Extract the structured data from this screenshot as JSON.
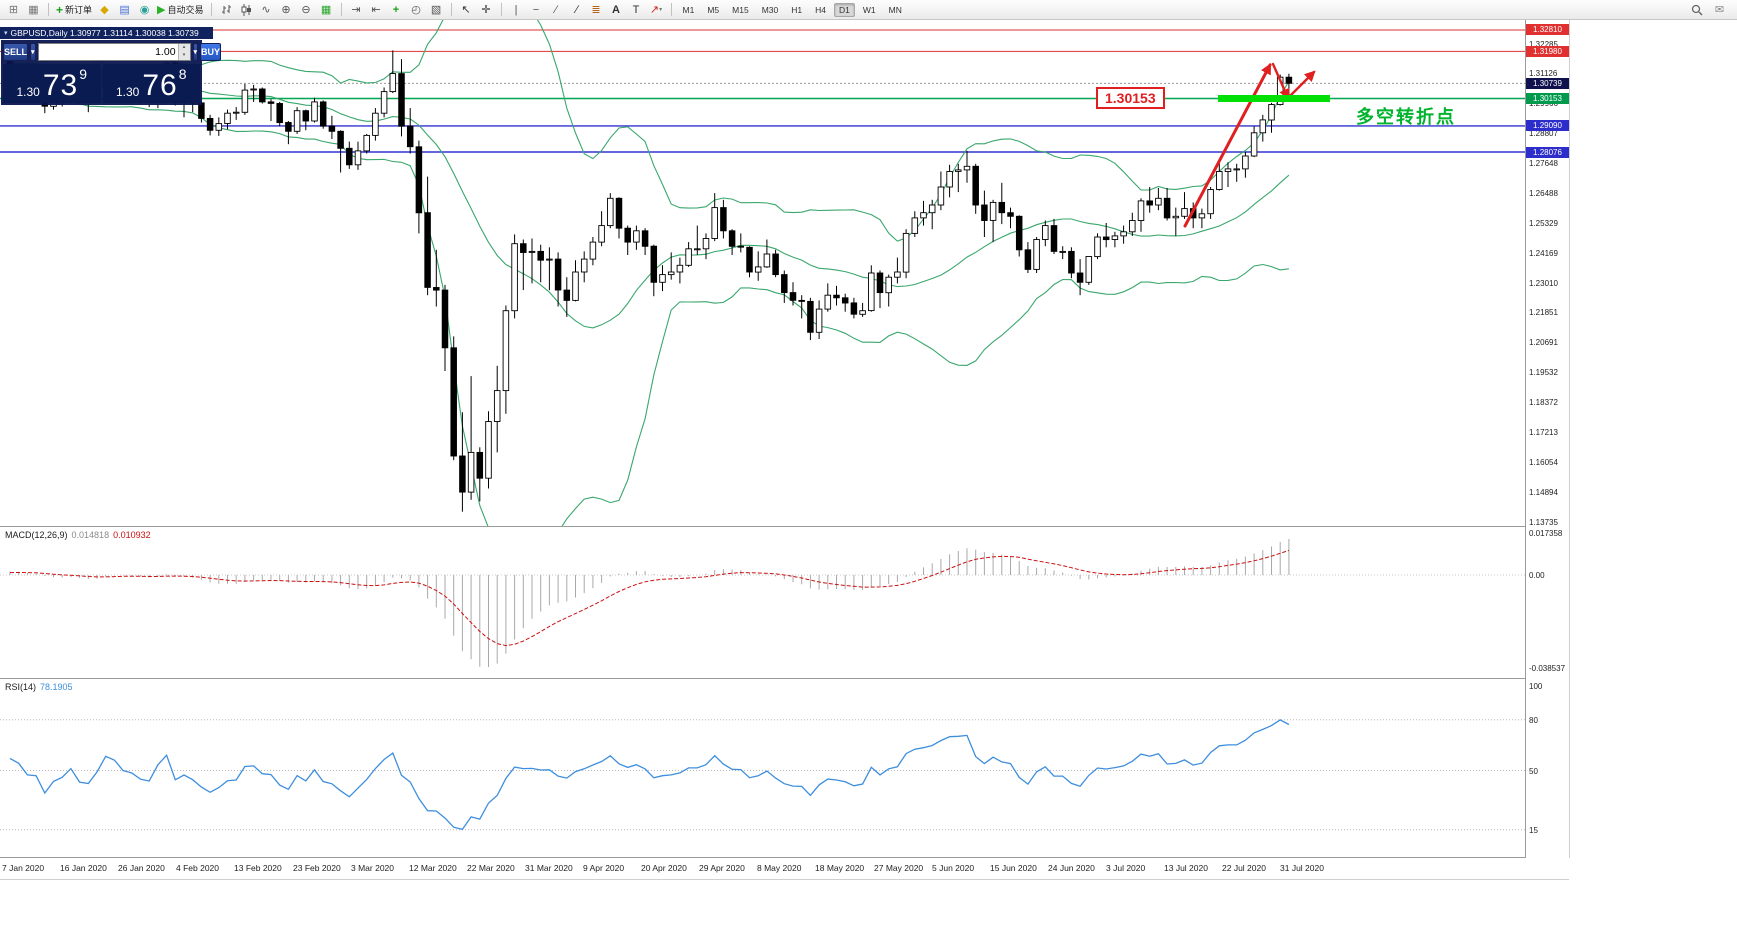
{
  "chart": {
    "title": "GBPUSD,Daily  1.30977 1.31114 1.30038 1.30739",
    "symbol": "GBPUSD",
    "period": "Daily",
    "ohlc": {
      "open": "1.30977",
      "high": "1.31114",
      "low": "1.30038",
      "close": "1.30739"
    }
  },
  "toolbar": {
    "groups": [
      {
        "items": [
          {
            "icon": "new-chart-icon"
          },
          {
            "icon": "profiles-icon"
          }
        ]
      },
      {
        "items": [
          {
            "icon": "new-order-icon",
            "label": "新订单"
          },
          {
            "icon": "metaeditor-icon"
          },
          {
            "icon": "market-watch-icon"
          },
          {
            "icon": "tester-icon"
          },
          {
            "icon": "autotrade-icon",
            "label": "自动交易"
          }
        ]
      },
      {
        "items": [
          {
            "icon": "bars-icon"
          },
          {
            "icon": "candles-icon"
          },
          {
            "icon": "line-chart-icon"
          },
          {
            "icon": "zoom-in-icon"
          },
          {
            "icon": "zoom-out-icon"
          },
          {
            "icon": "tile-windows-icon"
          }
        ]
      },
      {
        "items": [
          {
            "icon": "autoscroll-icon"
          },
          {
            "icon": "chart-shift-icon"
          },
          {
            "icon": "indicators-icon"
          },
          {
            "icon": "periods-icon"
          },
          {
            "icon": "templates-icon"
          }
        ]
      },
      {
        "items": [
          {
            "icon": "cursor-icon"
          },
          {
            "icon": "crosshair-icon"
          }
        ]
      },
      {
        "items": [
          {
            "icon": "vline-icon"
          },
          {
            "icon": "hline-icon"
          },
          {
            "icon": "trendline-icon"
          },
          {
            "icon": "channel-icon"
          },
          {
            "icon": "fibo-icon"
          },
          {
            "icon": "text-icon"
          },
          {
            "icon": "label-icon"
          },
          {
            "icon": "arrows-icon"
          }
        ]
      }
    ],
    "timeframes": [
      {
        "label": "M1"
      },
      {
        "label": "M5"
      },
      {
        "label": "M15"
      },
      {
        "label": "M30"
      },
      {
        "label": "H1"
      },
      {
        "label": "H4"
      },
      {
        "label": "D1",
        "active": true
      },
      {
        "label": "W1"
      },
      {
        "label": "MN"
      }
    ],
    "right_icons": [
      {
        "icon": "search-icon"
      },
      {
        "icon": "community-icon"
      }
    ]
  },
  "trade_panel": {
    "sell_label": "SELL",
    "buy_label": "BUY",
    "volume": "1.00",
    "sell_price": {
      "big": "1.30",
      "mid": "73",
      "sup": "9"
    },
    "buy_price": {
      "big": "1.30",
      "mid": "76",
      "sup": "8"
    }
  },
  "annotations": {
    "price_label": "1.30153",
    "turning_point_text": "多空转折点",
    "colors": {
      "arrow_red": "#e02020",
      "label_red": "#e02020",
      "highlight_green": "#00e004",
      "text_green": "#00b32d"
    },
    "arrows": [
      {
        "from": [
          1185,
          206
        ],
        "to": [
          1270,
          45
        ],
        "w": 3
      },
      {
        "from": [
          1273,
          44
        ],
        "to": [
          1288,
          78
        ],
        "w": 2.4
      },
      {
        "from": [
          1288,
          78
        ],
        "to": [
          1314,
          52
        ],
        "w": 2.4
      }
    ]
  },
  "price_scale": {
    "ticks": [
      "1.32285",
      "1.31126",
      "1.29966",
      "1.28807",
      "1.27648",
      "1.26488",
      "1.25329",
      "1.24169",
      "1.23010",
      "1.21851",
      "1.20691",
      "1.19532",
      "1.18372",
      "1.17213",
      "1.16054",
      "1.14894",
      "1.13735"
    ],
    "tags": [
      {
        "text": "1.32810",
        "price": 1.3281,
        "bg": "#e03030"
      },
      {
        "text": "1.31980",
        "price": 1.3198,
        "bg": "#e03030"
      },
      {
        "text": "1.30739",
        "price": 1.30739,
        "bg": "#10104e"
      },
      {
        "text": "1.30153",
        "price": 1.30153,
        "bg": "#009a4d"
      },
      {
        "text": "1.29090",
        "price": 1.2909,
        "bg": "#2d2dcb"
      },
      {
        "text": "1.28076",
        "price": 1.28076,
        "bg": "#2d2dcb"
      }
    ]
  },
  "hlines": [
    {
      "price": 1.3281,
      "color": "#e03030",
      "width": 1
    },
    {
      "price": 1.3198,
      "color": "#e03030",
      "width": 1
    },
    {
      "price": 1.30739,
      "color": "#9a9a9a",
      "width": 1,
      "dash": "2,2"
    },
    {
      "price": 1.30153,
      "color": "#00a651",
      "width": 1.4
    },
    {
      "price": 1.2909,
      "color": "#3232d0",
      "width": 1.4
    },
    {
      "price": 1.28076,
      "color": "#3232d0",
      "width": 1.4
    }
  ],
  "chart_data": {
    "type": "candlestick",
    "symbol": "GBPUSD",
    "timeframe": "Daily",
    "ylim": [
      1.13735,
      1.33198
    ],
    "x_labels": [
      "7 Jan 2020",
      "16 Jan 2020",
      "26 Jan 2020",
      "4 Feb 2020",
      "13 Feb 2020",
      "23 Feb 2020",
      "3 Mar 2020",
      "12 Mar 2020",
      "22 Mar 2020",
      "31 Mar 2020",
      "9 Apr 2020",
      "20 Apr 2020",
      "29 Apr 2020",
      "8 May 2020",
      "18 May 2020",
      "27 May 2020",
      "5 Jun 2020",
      "15 Jun 2020",
      "24 Jun 2020",
      "3 Jul 2020",
      "13 Jul 2020",
      "22 Jul 2020",
      "31 Jul 2020"
    ],
    "candles": [
      [
        1.3165,
        1.3172,
        1.3102,
        1.312
      ],
      [
        1.312,
        1.3138,
        1.3072,
        1.3105
      ],
      [
        1.3105,
        1.3112,
        1.3048,
        1.3065
      ],
      [
        1.3065,
        1.3088,
        1.3012,
        1.3062
      ],
      [
        1.3062,
        1.3068,
        1.2958,
        1.2985
      ],
      [
        1.2985,
        1.3042,
        1.2972,
        1.3025
      ],
      [
        1.3025,
        1.3048,
        1.2984,
        1.304
      ],
      [
        1.304,
        1.3092,
        1.3022,
        1.3075
      ],
      [
        1.3075,
        1.3118,
        1.3002,
        1.3012
      ],
      [
        1.3012,
        1.3028,
        1.2962,
        1.3005
      ],
      [
        1.3005,
        1.3082,
        1.2998,
        1.3052
      ],
      [
        1.3052,
        1.3148,
        1.3046,
        1.3135
      ],
      [
        1.3135,
        1.315,
        1.3078,
        1.3118
      ],
      [
        1.3118,
        1.3132,
        1.3032,
        1.3068
      ],
      [
        1.3068,
        1.3075,
        1.3002,
        1.3055
      ],
      [
        1.3055,
        1.3062,
        1.2992,
        1.3022
      ],
      [
        1.3022,
        1.304,
        1.2982,
        1.3012
      ],
      [
        1.3012,
        1.3102,
        1.2978,
        1.3092
      ],
      [
        1.3092,
        1.3168,
        1.3088,
        1.3152
      ],
      [
        1.3152,
        1.3158,
        1.2988,
        1.3002
      ],
      [
        1.3002,
        1.3048,
        1.2942,
        1.3032
      ],
      [
        1.3032,
        1.3052,
        1.2962,
        1.2998
      ],
      [
        1.2998,
        1.3008,
        1.2922,
        1.2938
      ],
      [
        1.2938,
        1.2952,
        1.2872,
        1.2892
      ],
      [
        1.2892,
        1.2942,
        1.287,
        1.2918
      ],
      [
        1.2918,
        1.2972,
        1.2896,
        1.2958
      ],
      [
        1.2958,
        1.2982,
        1.2932,
        1.2962
      ],
      [
        1.2962,
        1.3072,
        1.2952,
        1.3048
      ],
      [
        1.3048,
        1.3068,
        1.3002,
        1.3052
      ],
      [
        1.3052,
        1.3058,
        1.2996,
        1.3002
      ],
      [
        1.3002,
        1.3012,
        1.2928,
        1.2996
      ],
      [
        1.2996,
        1.3002,
        1.2908,
        1.2922
      ],
      [
        1.2922,
        1.2928,
        1.2838,
        1.2888
      ],
      [
        1.2888,
        1.2982,
        1.2878,
        1.2968
      ],
      [
        1.2968,
        1.2972,
        1.2892,
        1.2928
      ],
      [
        1.2928,
        1.3018,
        1.2922,
        1.3002
      ],
      [
        1.3002,
        1.3008,
        1.2898,
        1.2908
      ],
      [
        1.2908,
        1.2948,
        1.2858,
        1.2888
      ],
      [
        1.2888,
        1.2892,
        1.2728,
        1.2822
      ],
      [
        1.2822,
        1.2848,
        1.2742,
        1.2758
      ],
      [
        1.2758,
        1.2848,
        1.2738,
        1.2812
      ],
      [
        1.2812,
        1.2878,
        1.2802,
        1.2872
      ],
      [
        1.2872,
        1.2978,
        1.2852,
        1.2958
      ],
      [
        1.2958,
        1.3058,
        1.2942,
        1.3042
      ],
      [
        1.3042,
        1.3202,
        1.3036,
        1.3112
      ],
      [
        1.3112,
        1.3168,
        1.2868,
        1.2908
      ],
      [
        1.2908,
        1.2978,
        1.2802,
        1.2828
      ],
      [
        1.2828,
        1.2852,
        1.2492,
        1.2572
      ],
      [
        1.2572,
        1.2712,
        1.2252,
        1.2282
      ],
      [
        1.2282,
        1.2428,
        1.2208,
        1.2272
      ],
      [
        1.2272,
        1.2292,
        1.1958,
        1.2048
      ],
      [
        1.2048,
        1.2092,
        1.1612,
        1.1628
      ],
      [
        1.1628,
        1.1798,
        1.1412,
        1.1488
      ],
      [
        1.1488,
        1.1938,
        1.1458,
        1.1642
      ],
      [
        1.1642,
        1.1662,
        1.1452,
        1.1542
      ],
      [
        1.1542,
        1.1802,
        1.1502,
        1.1762
      ],
      [
        1.1762,
        1.1978,
        1.1642,
        1.1882
      ],
      [
        1.1882,
        1.2212,
        1.1792,
        1.2192
      ],
      [
        1.2192,
        1.2488,
        1.2162,
        1.2452
      ],
      [
        1.2452,
        1.2468,
        1.2272,
        1.2418
      ],
      [
        1.2418,
        1.2472,
        1.2298,
        1.2422
      ],
      [
        1.2422,
        1.2448,
        1.2302,
        1.2388
      ],
      [
        1.2388,
        1.2438,
        1.2272,
        1.2392
      ],
      [
        1.2392,
        1.2418,
        1.2208,
        1.2272
      ],
      [
        1.2272,
        1.2322,
        1.2168,
        1.2232
      ],
      [
        1.2232,
        1.2388,
        1.2228,
        1.2342
      ],
      [
        1.2342,
        1.2422,
        1.2302,
        1.2392
      ],
      [
        1.2392,
        1.2478,
        1.2368,
        1.2458
      ],
      [
        1.2458,
        1.2578,
        1.2442,
        1.2522
      ],
      [
        1.2522,
        1.2648,
        1.2512,
        1.2628
      ],
      [
        1.2628,
        1.2632,
        1.2472,
        1.2512
      ],
      [
        1.2512,
        1.2522,
        1.2408,
        1.2458
      ],
      [
        1.2458,
        1.2522,
        1.2428,
        1.2502
      ],
      [
        1.2502,
        1.2512,
        1.2408,
        1.2442
      ],
      [
        1.2442,
        1.2448,
        1.2248,
        1.2302
      ],
      [
        1.2302,
        1.2368,
        1.2268,
        1.2332
      ],
      [
        1.2332,
        1.2418,
        1.2312,
        1.2342
      ],
      [
        1.2342,
        1.2398,
        1.2298,
        1.2368
      ],
      [
        1.2368,
        1.2458,
        1.2362,
        1.2432
      ],
      [
        1.2432,
        1.2522,
        1.2408,
        1.2432
      ],
      [
        1.2432,
        1.2492,
        1.2392,
        1.2472
      ],
      [
        1.2472,
        1.2648,
        1.2462,
        1.2592
      ],
      [
        1.2592,
        1.2622,
        1.2472,
        1.2502
      ],
      [
        1.2502,
        1.2508,
        1.2408,
        1.2442
      ],
      [
        1.2442,
        1.2492,
        1.2418,
        1.2438
      ],
      [
        1.2438,
        1.2442,
        1.2322,
        1.2342
      ],
      [
        1.2342,
        1.2422,
        1.2308,
        1.2362
      ],
      [
        1.2362,
        1.2468,
        1.2358,
        1.2412
      ],
      [
        1.2412,
        1.2428,
        1.2322,
        1.2332
      ],
      [
        1.2332,
        1.2348,
        1.2222,
        1.2262
      ],
      [
        1.2262,
        1.2302,
        1.2212,
        1.2232
      ],
      [
        1.2232,
        1.2252,
        1.2162,
        1.2228
      ],
      [
        1.2228,
        1.2242,
        1.2078,
        1.2108
      ],
      [
        1.2108,
        1.2232,
        1.2082,
        1.2198
      ],
      [
        1.2198,
        1.2298,
        1.2188,
        1.2252
      ],
      [
        1.2252,
        1.2288,
        1.2212,
        1.2242
      ],
      [
        1.2242,
        1.2258,
        1.2188,
        1.2222
      ],
      [
        1.2222,
        1.2242,
        1.2162,
        1.2178
      ],
      [
        1.2178,
        1.2222,
        1.2168,
        1.2192
      ],
      [
        1.2192,
        1.2368,
        1.2188,
        1.2338
      ],
      [
        1.2338,
        1.2348,
        1.2202,
        1.2262
      ],
      [
        1.2262,
        1.2332,
        1.2208,
        1.2322
      ],
      [
        1.2322,
        1.2398,
        1.2298,
        1.2342
      ],
      [
        1.2342,
        1.2508,
        1.2318,
        1.2492
      ],
      [
        1.2492,
        1.2578,
        1.2478,
        1.2552
      ],
      [
        1.2552,
        1.2618,
        1.2522,
        1.2572
      ],
      [
        1.2572,
        1.2622,
        1.2508,
        1.2602
      ],
      [
        1.2602,
        1.2732,
        1.2582,
        1.2672
      ],
      [
        1.2672,
        1.2758,
        1.2632,
        1.2732
      ],
      [
        1.2732,
        1.2762,
        1.2652,
        1.2738
      ],
      [
        1.2738,
        1.2812,
        1.2688,
        1.2752
      ],
      [
        1.2752,
        1.2762,
        1.2568,
        1.2602
      ],
      [
        1.2602,
        1.2658,
        1.2478,
        1.2542
      ],
      [
        1.2542,
        1.2622,
        1.2458,
        1.2612
      ],
      [
        1.2612,
        1.2688,
        1.2528,
        1.2572
      ],
      [
        1.2572,
        1.2592,
        1.2512,
        1.2558
      ],
      [
        1.2558,
        1.2562,
        1.2402,
        1.2428
      ],
      [
        1.2428,
        1.2458,
        1.2338,
        1.2352
      ],
      [
        1.2352,
        1.2478,
        1.2338,
        1.2468
      ],
      [
        1.2468,
        1.2542,
        1.2442,
        1.2522
      ],
      [
        1.2522,
        1.2548,
        1.2412,
        1.2422
      ],
      [
        1.2422,
        1.2442,
        1.2392,
        1.2422
      ],
      [
        1.2422,
        1.2438,
        1.2318,
        1.2338
      ],
      [
        1.2338,
        1.2392,
        1.2252,
        1.2302
      ],
      [
        1.2302,
        1.2402,
        1.2292,
        1.2402
      ],
      [
        1.2402,
        1.2492,
        1.2392,
        1.2478
      ],
      [
        1.2478,
        1.2532,
        1.2438,
        1.2468
      ],
      [
        1.2468,
        1.2498,
        1.2438,
        1.2482
      ],
      [
        1.2482,
        1.2522,
        1.2452,
        1.2498
      ],
      [
        1.2498,
        1.2572,
        1.2482,
        1.2542
      ],
      [
        1.2542,
        1.2628,
        1.2498,
        1.2618
      ],
      [
        1.2618,
        1.2672,
        1.2572,
        1.2602
      ],
      [
        1.2602,
        1.2668,
        1.2582,
        1.2628
      ],
      [
        1.2628,
        1.2668,
        1.2542,
        1.2552
      ],
      [
        1.2552,
        1.2592,
        1.2482,
        1.2558
      ],
      [
        1.2558,
        1.2652,
        1.2548,
        1.2588
      ],
      [
        1.2588,
        1.2612,
        1.2512,
        1.2552
      ],
      [
        1.2552,
        1.2588,
        1.2512,
        1.2568
      ],
      [
        1.2568,
        1.2672,
        1.2548,
        1.2662
      ],
      [
        1.2662,
        1.2772,
        1.2658,
        1.2732
      ],
      [
        1.2732,
        1.2768,
        1.2672,
        1.2742
      ],
      [
        1.2742,
        1.2762,
        1.2692,
        1.2742
      ],
      [
        1.2742,
        1.2808,
        1.2708,
        1.2792
      ],
      [
        1.2792,
        1.2908,
        1.2788,
        1.2882
      ],
      [
        1.2882,
        1.2952,
        1.2848,
        1.2932
      ],
      [
        1.2932,
        1.2998,
        1.2882,
        1.2992
      ],
      [
        1.2992,
        1.3108,
        1.2988,
        1.3098
      ],
      [
        1.30977,
        1.31114,
        1.30038,
        1.30739
      ]
    ],
    "indicators": {
      "bollinger": {
        "period": 20,
        "deviation": 2,
        "color": "#3aa76d"
      },
      "macd": {
        "label": "MACD(12,26,9)",
        "value": "0.014818",
        "signal_value": "0.010932",
        "scale_max": "0.017358",
        "scale_zero": "0.00",
        "scale_min": "-0.038537",
        "histogram_color": "#a9a9a9",
        "signal_color": "#cc1111"
      },
      "rsi": {
        "label": "RSI(14)",
        "value": "78.1905",
        "line_color": "#3e8ede",
        "levels": [
          100,
          80,
          50,
          15
        ],
        "scale_labels": [
          "100",
          "80",
          "50",
          "15"
        ]
      }
    }
  }
}
